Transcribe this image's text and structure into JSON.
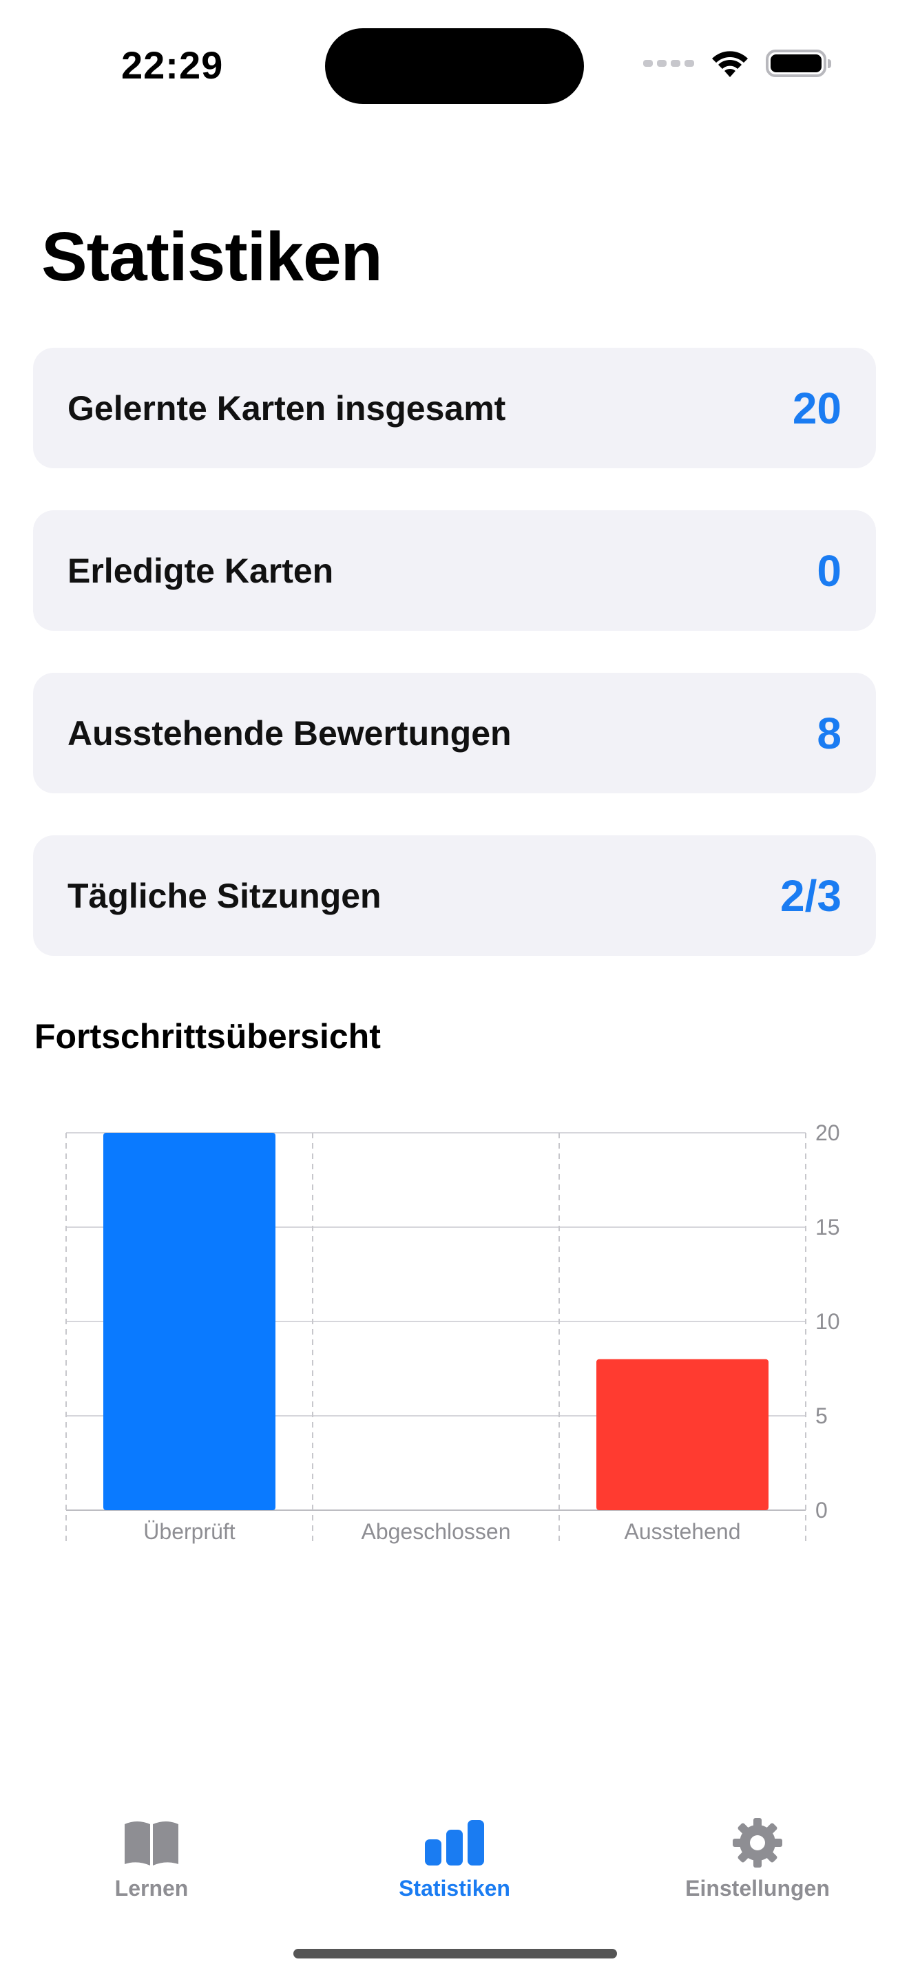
{
  "status_bar": {
    "time": "22:29"
  },
  "page_title": "Statistiken",
  "stats": [
    {
      "label": "Gelernte Karten insgesamt",
      "value": "20"
    },
    {
      "label": "Erledigte Karten",
      "value": "0"
    },
    {
      "label": "Ausstehende Bewertungen",
      "value": "8"
    },
    {
      "label": "Tägliche Sitzungen",
      "value": "2/3"
    }
  ],
  "section_title": "Fortschrittsübersicht",
  "chart_data": {
    "type": "bar",
    "categories": [
      "Überprüft",
      "Abgeschlossen",
      "Ausstehend"
    ],
    "values": [
      20,
      0,
      8
    ],
    "colors": [
      "#0a7aff",
      "#0a7aff",
      "#ff3b30"
    ],
    "ylim": [
      0,
      20
    ],
    "yticks": [
      0,
      5,
      10,
      15,
      20
    ],
    "y_axis_side": "right",
    "grid": true
  },
  "tabs": [
    {
      "label": "Lernen",
      "icon": "book-icon",
      "active": false
    },
    {
      "label": "Statistiken",
      "icon": "chart-icon",
      "active": true
    },
    {
      "label": "Einstellungen",
      "icon": "gear-icon",
      "active": false
    }
  ],
  "colors": {
    "accent": "#1a7cf2",
    "card_bg": "#f2f2f7",
    "inactive": "#8e8e93",
    "pending_bar": "#ff3b30"
  }
}
